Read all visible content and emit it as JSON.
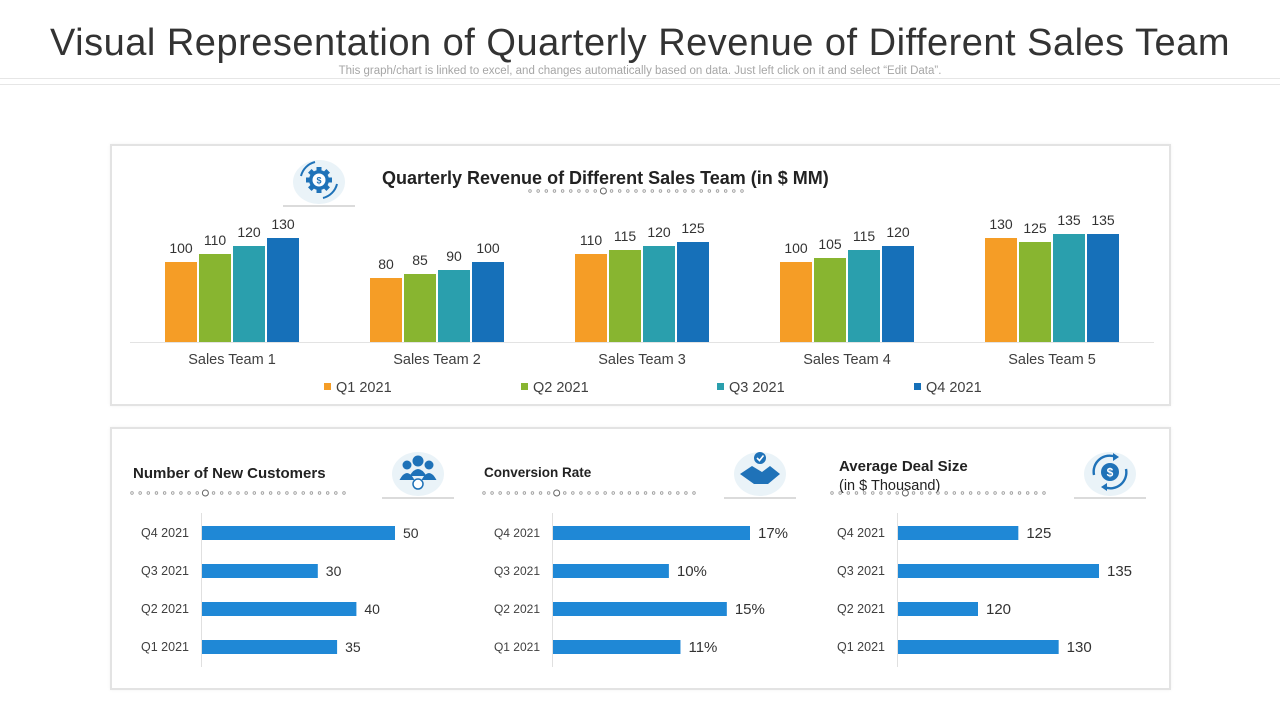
{
  "page": {
    "title": "Visual Representation of Quarterly Revenue of Different Sales Team",
    "subtitle": "This graph/chart is linked to excel, and changes automatically based on data. Just left click on it and select “Edit Data”."
  },
  "colors": {
    "q1": "#f59d26",
    "q2": "#88b530",
    "q3": "#2a9fad",
    "q4": "#1670b9",
    "hbar": "#1f88d6",
    "icon": "#1f72b8"
  },
  "icons": {
    "revenue": "gear-dollar-icon",
    "customers": "customer-group-icon",
    "conversion": "handshake-icon",
    "deal": "dollar-cycle-icon"
  },
  "chart_data": [
    {
      "type": "bar",
      "title": "Quarterly Revenue of Different Sales Team (in $ MM)",
      "categories": [
        "Sales Team 1",
        "Sales Team 2",
        "Sales Team 3",
        "Sales Team 4",
        "Sales Team 5"
      ],
      "series": [
        {
          "name": "Q1 2021",
          "values": [
            100,
            80,
            110,
            100,
            130
          ]
        },
        {
          "name": "Q2 2021",
          "values": [
            110,
            85,
            115,
            105,
            125
          ]
        },
        {
          "name": "Q3 2021",
          "values": [
            120,
            90,
            120,
            115,
            135
          ]
        },
        {
          "name": "Q4 2021",
          "values": [
            130,
            100,
            125,
            120,
            135
          ]
        }
      ],
      "ylim": [
        0,
        140
      ],
      "legend": "bottom",
      "grid": false
    },
    {
      "type": "bar",
      "orientation": "horizontal",
      "title": "Number of New Customers",
      "categories": [
        "Q4 2021",
        "Q3 2021",
        "Q2 2021",
        "Q1 2021"
      ],
      "values": [
        50,
        30,
        40,
        35
      ],
      "labels": [
        "50",
        "30",
        "40",
        "35"
      ],
      "xlim": [
        0,
        60
      ]
    },
    {
      "type": "bar",
      "orientation": "horizontal",
      "title": "Conversion Rate",
      "categories": [
        "Q4 2021",
        "Q3 2021",
        "Q2 2021",
        "Q1 2021"
      ],
      "values": [
        17,
        10,
        15,
        11
      ],
      "labels": [
        "17%",
        "10%",
        "15%",
        "11%"
      ],
      "xlim": [
        0,
        20
      ]
    },
    {
      "type": "bar",
      "orientation": "horizontal",
      "title": "Average Deal Size",
      "subtitle": "(in $ Thousand)",
      "categories": [
        "Q4 2021",
        "Q3 2021",
        "Q2 2021",
        "Q1 2021"
      ],
      "values": [
        125,
        135,
        120,
        130
      ],
      "labels": [
        "125",
        "135",
        "120",
        "130"
      ],
      "xlim": [
        105,
        140
      ]
    }
  ]
}
